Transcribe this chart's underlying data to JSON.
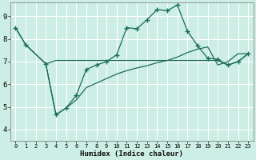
{
  "title": "",
  "xlabel": "Humidex (Indice chaleur)",
  "ylabel": "",
  "bg_color": "#cceee4",
  "grid_color": "#b0ddd4",
  "line_color": "#1a6b5a",
  "xlim": [
    -0.5,
    23.5
  ],
  "ylim": [
    3.5,
    9.6
  ],
  "yticks": [
    4,
    5,
    6,
    7,
    8,
    9
  ],
  "xticks": [
    0,
    1,
    2,
    3,
    4,
    5,
    6,
    7,
    8,
    9,
    10,
    11,
    12,
    13,
    14,
    15,
    16,
    17,
    18,
    19,
    20,
    21,
    22,
    23
  ],
  "series": [
    {
      "x": [
        0,
        1,
        3,
        4,
        5,
        6,
        7,
        8,
        9,
        10,
        11,
        12,
        13,
        14,
        15,
        16,
        17,
        18,
        19,
        20,
        21,
        22,
        23
      ],
      "y": [
        8.5,
        7.75,
        6.9,
        4.65,
        4.95,
        5.5,
        6.65,
        6.85,
        7.0,
        7.3,
        8.5,
        8.45,
        8.85,
        9.3,
        9.25,
        9.5,
        8.35,
        7.7,
        7.15,
        7.1,
        6.85,
        7.0,
        7.35
      ]
    },
    {
      "x": [
        0,
        1,
        3,
        4,
        5,
        6,
        7,
        8,
        9,
        10,
        11,
        12,
        13,
        14,
        15,
        16,
        17,
        18,
        19,
        20,
        21,
        22,
        23
      ],
      "y": [
        8.5,
        7.75,
        6.9,
        7.05,
        7.05,
        7.05,
        7.05,
        7.05,
        7.05,
        7.05,
        7.05,
        7.05,
        7.05,
        7.05,
        7.05,
        7.05,
        7.05,
        7.05,
        7.05,
        7.05,
        6.85,
        7.0,
        7.35
      ]
    },
    {
      "x": [
        3,
        4,
        5,
        6,
        7,
        8,
        9,
        10,
        11,
        12,
        13,
        14,
        15,
        16,
        17,
        18,
        19,
        20,
        21,
        22,
        23
      ],
      "y": [
        6.9,
        4.65,
        4.95,
        5.3,
        5.85,
        6.05,
        6.25,
        6.45,
        6.6,
        6.72,
        6.82,
        6.95,
        7.05,
        7.2,
        7.4,
        7.55,
        7.65,
        6.85,
        7.0,
        7.35,
        7.35
      ]
    }
  ]
}
